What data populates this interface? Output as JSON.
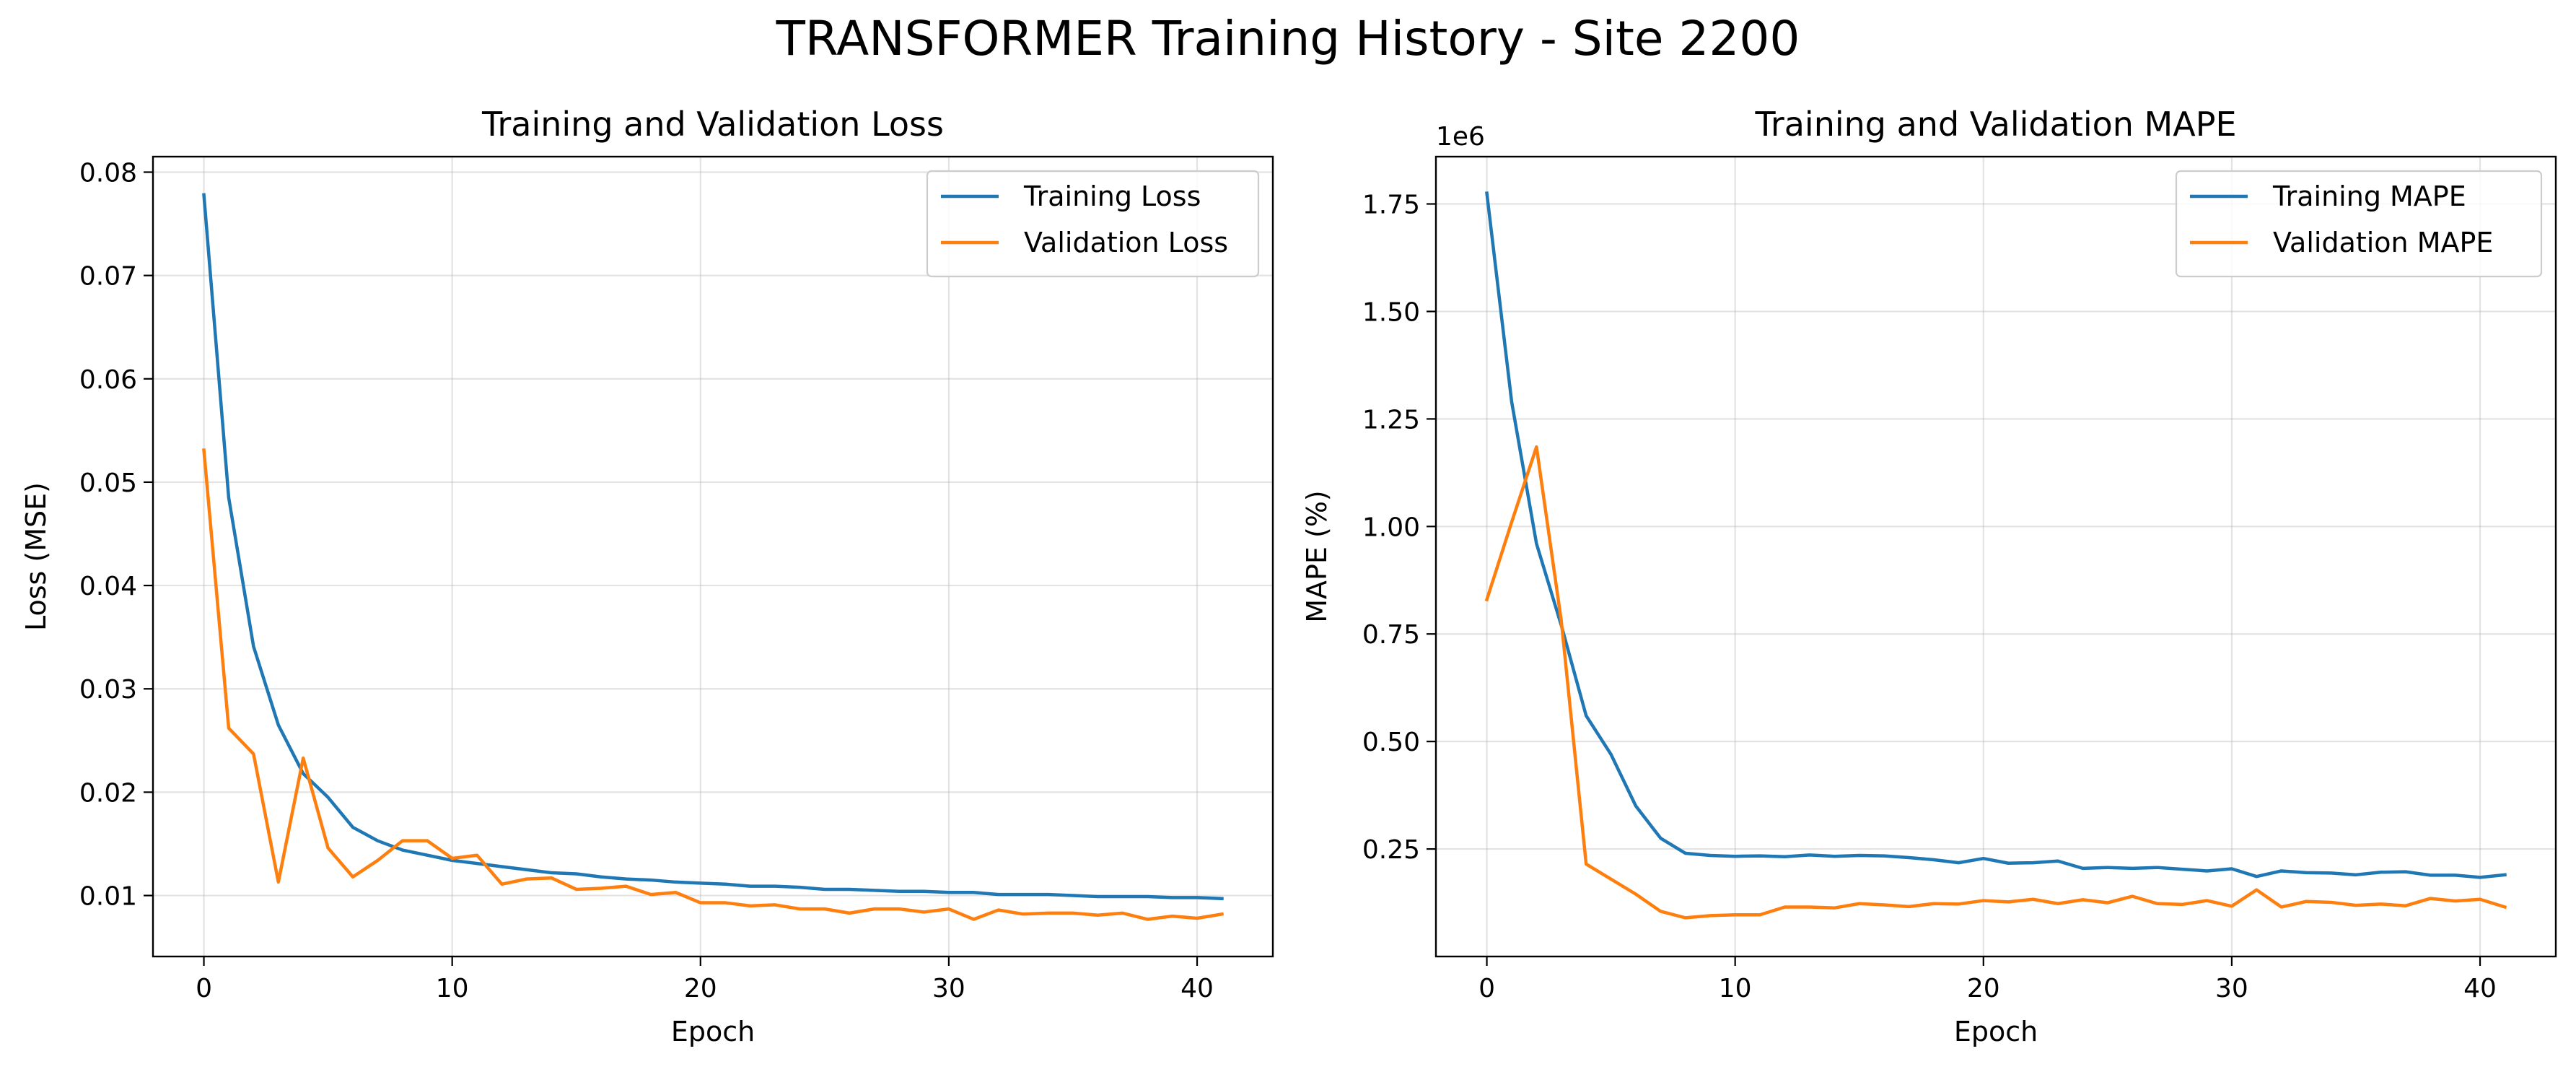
{
  "figure": {
    "title": "TRANSFORMER Training History - Site 2200"
  },
  "colors": {
    "training": "#1f77b4",
    "validation": "#ff7f0e"
  },
  "chart_data": [
    {
      "type": "line",
      "title": "Training and Validation Loss",
      "xlabel": "Epoch",
      "ylabel": "Loss (MSE)",
      "offset_label": "",
      "xlim": [
        -2.05,
        43.05
      ],
      "ylim": [
        0.0041,
        0.0815
      ],
      "xticks": [
        0,
        10,
        20,
        30,
        40
      ],
      "xtick_labels": [
        "0",
        "10",
        "20",
        "30",
        "40"
      ],
      "yticks": [
        0.01,
        0.02,
        0.03,
        0.04,
        0.05,
        0.06,
        0.07,
        0.08
      ],
      "ytick_labels": [
        "0.01",
        "0.02",
        "0.03",
        "0.04",
        "0.05",
        "0.06",
        "0.07",
        "0.08"
      ],
      "grid": true,
      "legend_position": "top-right",
      "x": [
        0,
        1,
        2,
        3,
        4,
        5,
        6,
        7,
        8,
        9,
        10,
        11,
        12,
        13,
        14,
        15,
        16,
        17,
        18,
        19,
        20,
        21,
        22,
        23,
        24,
        25,
        26,
        27,
        28,
        29,
        30,
        31,
        32,
        33,
        34,
        35,
        36,
        37,
        38,
        39,
        40,
        41
      ],
      "series": [
        {
          "name": "Training Loss",
          "color": "#1f77b4",
          "values": [
            0.0778,
            0.0485,
            0.0341,
            0.0265,
            0.0218,
            0.0195,
            0.0166,
            0.0153,
            0.0144,
            0.0139,
            0.0134,
            0.0131,
            0.0128,
            0.0125,
            0.0122,
            0.0121,
            0.0118,
            0.0116,
            0.0115,
            0.0113,
            0.0112,
            0.0111,
            0.0109,
            0.0109,
            0.0108,
            0.0106,
            0.0106,
            0.0105,
            0.0104,
            0.0104,
            0.0103,
            0.0103,
            0.0101,
            0.0101,
            0.0101,
            0.01,
            0.0099,
            0.0099,
            0.0099,
            0.0098,
            0.0098,
            0.0097
          ]
        },
        {
          "name": "Validation Loss",
          "color": "#ff7f0e",
          "values": [
            0.0531,
            0.0262,
            0.0237,
            0.0113,
            0.0233,
            0.0146,
            0.0118,
            0.0134,
            0.0153,
            0.0153,
            0.0136,
            0.0139,
            0.0111,
            0.0116,
            0.0117,
            0.0106,
            0.0107,
            0.0109,
            0.0101,
            0.0103,
            0.0093,
            0.0093,
            0.009,
            0.0091,
            0.0087,
            0.0087,
            0.0083,
            0.0087,
            0.0087,
            0.0084,
            0.0087,
            0.0077,
            0.0086,
            0.0082,
            0.0083,
            0.0083,
            0.0081,
            0.0083,
            0.0077,
            0.008,
            0.0078,
            0.0082
          ]
        }
      ]
    },
    {
      "type": "line",
      "title": "Training and Validation MAPE",
      "xlabel": "Epoch",
      "ylabel": "MAPE (%)",
      "offset_label": "1e6",
      "xlim": [
        -2.05,
        43.05
      ],
      "ylim": [
        0.0,
        1.86
      ],
      "xticks": [
        0,
        10,
        20,
        30,
        40
      ],
      "xtick_labels": [
        "0",
        "10",
        "20",
        "30",
        "40"
      ],
      "yticks": [
        0.25,
        0.5,
        0.75,
        1.0,
        1.25,
        1.5,
        1.75
      ],
      "ytick_labels": [
        "0.25",
        "0.50",
        "0.75",
        "1.00",
        "1.25",
        "1.50",
        "1.75"
      ],
      "grid": true,
      "legend_position": "top-right",
      "x": [
        0,
        1,
        2,
        3,
        4,
        5,
        6,
        7,
        8,
        9,
        10,
        11,
        12,
        13,
        14,
        15,
        16,
        17,
        18,
        19,
        20,
        21,
        22,
        23,
        24,
        25,
        26,
        27,
        28,
        29,
        30,
        31,
        32,
        33,
        34,
        35,
        36,
        37,
        38,
        39,
        40,
        41
      ],
      "series": [
        {
          "name": "Training MAPE",
          "color": "#1f77b4",
          "values": [
            1.775,
            1.29,
            0.96,
            0.77,
            0.56,
            0.47,
            0.35,
            0.275,
            0.24,
            0.235,
            0.233,
            0.234,
            0.232,
            0.236,
            0.233,
            0.235,
            0.234,
            0.23,
            0.225,
            0.218,
            0.228,
            0.217,
            0.218,
            0.222,
            0.205,
            0.207,
            0.205,
            0.207,
            0.203,
            0.199,
            0.204,
            0.186,
            0.199,
            0.195,
            0.194,
            0.19,
            0.196,
            0.197,
            0.189,
            0.189,
            0.184,
            0.19
          ]
        },
        {
          "name": "Validation MAPE",
          "color": "#ff7f0e",
          "values": [
            0.83,
            1.01,
            1.185,
            0.78,
            0.215,
            0.18,
            0.145,
            0.105,
            0.09,
            0.095,
            0.097,
            0.097,
            0.115,
            0.115,
            0.113,
            0.123,
            0.12,
            0.116,
            0.123,
            0.122,
            0.13,
            0.127,
            0.133,
            0.123,
            0.132,
            0.125,
            0.14,
            0.123,
            0.121,
            0.13,
            0.117,
            0.155,
            0.115,
            0.128,
            0.126,
            0.119,
            0.122,
            0.118,
            0.135,
            0.129,
            0.133,
            0.115
          ]
        }
      ]
    }
  ]
}
